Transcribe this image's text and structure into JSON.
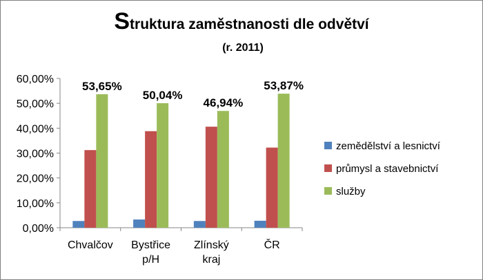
{
  "chart_data": {
    "type": "bar",
    "title_initial": "S",
    "title_rest": "truktura zaměstnanosti dle odvětví",
    "subtitle": "(r. 2011)",
    "categories": [
      [
        "Chvalčov"
      ],
      [
        "Bystřice",
        "p/H"
      ],
      [
        "Zlínský",
        "kraj"
      ],
      [
        "ČR"
      ]
    ],
    "series": [
      {
        "name": "zemědělství a lesnictví",
        "color": "#4f81bd",
        "values": [
          2.7,
          3.3,
          2.7,
          2.8
        ]
      },
      {
        "name": "průmysl a stavebnictví",
        "color": "#c0504d",
        "values": [
          31.2,
          38.8,
          40.6,
          32.2
        ]
      },
      {
        "name": "služby",
        "color": "#9bbb59",
        "values": [
          53.65,
          50.04,
          46.94,
          53.87
        ]
      }
    ],
    "data_labels": [
      "53,65%",
      "50,04%",
      "46,94%",
      "53,87%"
    ],
    "y_ticks": [
      "0,00%",
      "10,00%",
      "20,00%",
      "30,00%",
      "40,00%",
      "50,00%",
      "60,00%"
    ],
    "ylim": [
      0,
      60
    ],
    "grid": false,
    "legend_position": "right"
  }
}
